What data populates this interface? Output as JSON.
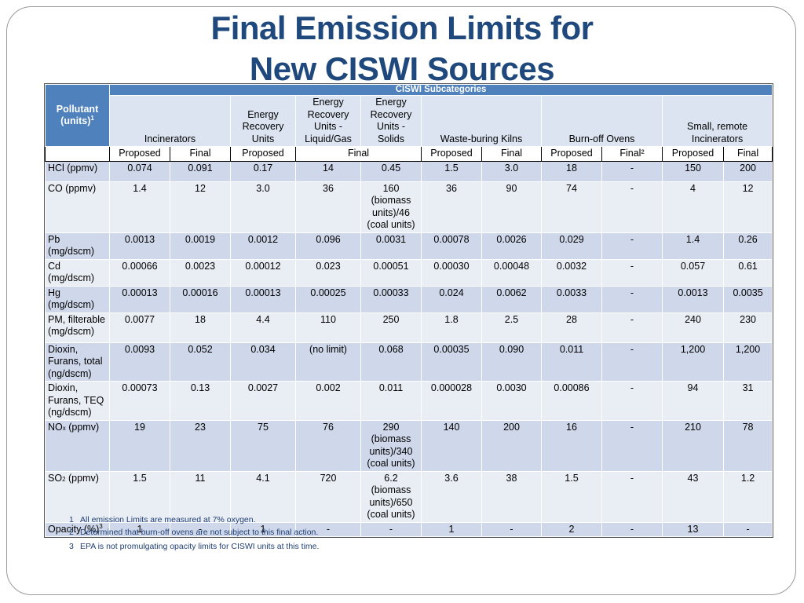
{
  "title": {
    "line1": "Final Emission Limits for",
    "line2": "New CISWI Sources"
  },
  "table": {
    "pollutant_header": "Pollutant (units)",
    "pollutant_sup": "1",
    "subcategories_header": "CISWI Subcategories",
    "columns": [
      "Incinerators",
      "Energy Recovery Units",
      "Energy Recovery Units - Liquid/Gas",
      "Energy Recovery Units - Solids",
      "Waste-buring Kilns",
      "Burn-off Ovens",
      "Small, remote Incinerators"
    ],
    "pf": {
      "proposed": "Proposed",
      "final": "Final",
      "final_ovens": "Final²"
    },
    "rows": [
      {
        "label": "HCl (ppmv)",
        "values": [
          "0.074",
          "0.091",
          "0.17",
          "14",
          "0.45",
          "1.5",
          "3.0",
          "18",
          "-",
          "150",
          "200"
        ]
      },
      {
        "label": "CO (ppmv)",
        "values": [
          "1.4",
          "12",
          "3.0",
          "36",
          "160 (biomass units)/46 (coal units)",
          "36",
          "90",
          "74",
          "-",
          "4",
          "12"
        ]
      },
      {
        "label": "Pb (mg/dscm)",
        "values": [
          "0.0013",
          "0.0019",
          "0.0012",
          "0.096",
          "0.0031",
          "0.00078",
          "0.0026",
          "0.029",
          "-",
          "1.4",
          "0.26"
        ]
      },
      {
        "label": "Cd (mg/dscm)",
        "values": [
          "0.00066",
          "0.0023",
          "0.00012",
          "0.023",
          "0.00051",
          "0.00030",
          "0.00048",
          "0.0032",
          "-",
          "0.057",
          "0.61"
        ]
      },
      {
        "label": "Hg (mg/dscm)",
        "values": [
          "0.00013",
          "0.00016",
          "0.00013",
          "0.00025",
          "0.00033",
          "0.024",
          "0.0062",
          "0.0033",
          "-",
          "0.0013",
          "0.0035"
        ]
      },
      {
        "label": "PM, filterable (mg/dscm)",
        "values": [
          "0.0077",
          "18",
          "4.4",
          "110",
          "250",
          "1.8",
          "2.5",
          "28",
          "-",
          "240",
          "230"
        ]
      },
      {
        "label": "Dioxin, Furans, total (ng/dscm)",
        "values": [
          "0.0093",
          "0.052",
          "0.034",
          "(no limit)",
          "0.068",
          "0.00035",
          "0.090",
          "0.011",
          "-",
          "1,200",
          "1,200"
        ]
      },
      {
        "label": "Dioxin, Furans, TEQ (ng/dscm)",
        "values": [
          "0.00073",
          "0.13",
          "0.0027",
          "0.002",
          "0.011",
          "0.000028",
          "0.0030",
          "0.00086",
          "-",
          "94",
          "31"
        ]
      },
      {
        "label_main": "NO",
        "label_sub": "x",
        "label_rest": " (ppmv)",
        "values": [
          "19",
          "23",
          "75",
          "76",
          "290 (biomass units)/340 (coal units)",
          "140",
          "200",
          "16",
          "-",
          "210",
          "78"
        ]
      },
      {
        "label_main": "SO",
        "label_sub": "2",
        "label_rest": " (ppmv)",
        "values": [
          "1.5",
          "11",
          "4.1",
          "720",
          "6.2 (biomass units)/650 (coal units)",
          "3.6",
          "38",
          "1.5",
          "-",
          "43",
          "1.2"
        ]
      },
      {
        "label": "Opacity (%)",
        "label_sup": "3",
        "values": [
          "1",
          "-",
          "1",
          "-",
          "-",
          "1",
          "-",
          "2",
          "-",
          "13",
          "-"
        ]
      }
    ]
  },
  "footnotes": [
    {
      "num": "1",
      "text": "All emission Limits are measured at 7% oxygen."
    },
    {
      "num": "2",
      "text": "Determined that burn-off ovens are not subject to this final action."
    },
    {
      "num": "3",
      "text": "EPA is not promulgating opacity limits for CISWI units at this time."
    }
  ]
}
